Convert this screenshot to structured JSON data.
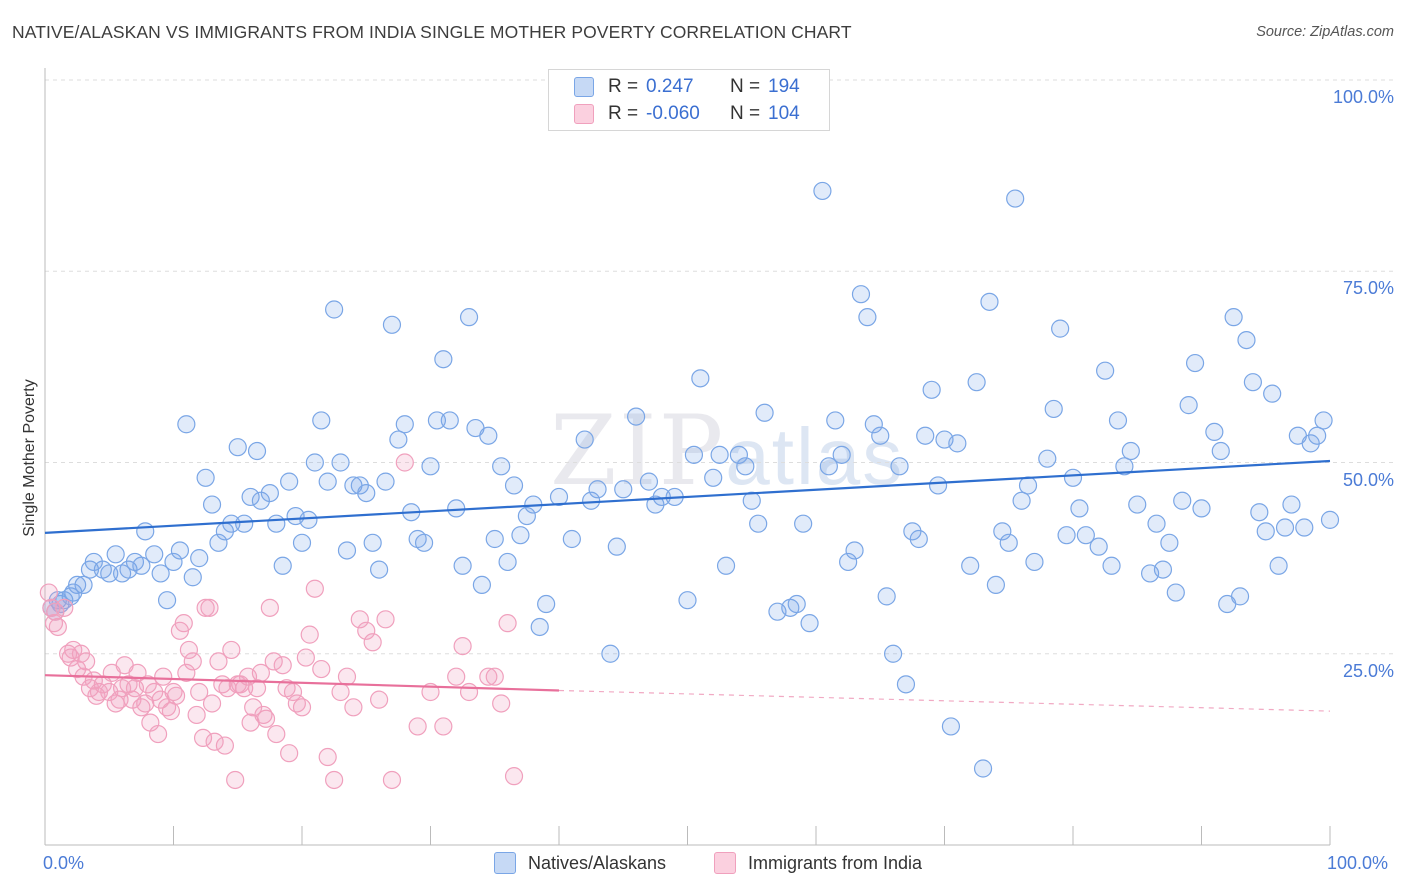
{
  "header": {
    "title": "NATIVE/ALASKAN VS IMMIGRANTS FROM INDIA SINGLE MOTHER POVERTY CORRELATION CHART",
    "source": "Source: ZipAtlas.com"
  },
  "watermark": {
    "zip": "ZIP",
    "atlas": "atlas"
  },
  "legend_top": {
    "rows": [
      {
        "r_label": "R =",
        "r_value": "0.247",
        "n_label": "N =",
        "n_value": "194"
      },
      {
        "r_label": "R =",
        "r_value": "-0.060",
        "n_label": "N =",
        "n_value": "104"
      }
    ]
  },
  "legend_bottom": {
    "series1": "Natives/Alaskans",
    "series2": "Immigrants from India"
  },
  "axes": {
    "y_label": "Single Mother Poverty",
    "y_ticks": [
      "100.0%",
      "75.0%",
      "50.0%",
      "25.0%"
    ],
    "x_min_label": "0.0%",
    "x_max_label": "100.0%"
  },
  "colors": {
    "blue_stroke": "#7aa6e6",
    "blue_fill": "rgba(120,165,230,0.22)",
    "blue_line": "#2f6fcf",
    "pink_stroke": "#f0a0bd",
    "pink_fill": "rgba(240,160,190,0.25)",
    "pink_line": "#e8709b",
    "grid": "#dddddd"
  },
  "chart_data": {
    "type": "scatter",
    "xlim": [
      0,
      100
    ],
    "ylim": [
      0,
      100
    ],
    "series": [
      {
        "name": "Natives/Alaskans",
        "trend": {
          "x": [
            0,
            100
          ],
          "y": [
            40.8,
            50.2
          ]
        },
        "points": [
          [
            0.5,
            31
          ],
          [
            0.8,
            30.5
          ],
          [
            1,
            32
          ],
          [
            1.2,
            31.5
          ],
          [
            1.5,
            32
          ],
          [
            2,
            32.5
          ],
          [
            2.2,
            33
          ],
          [
            2.5,
            34
          ],
          [
            3,
            34
          ],
          [
            3.5,
            36
          ],
          [
            3.8,
            37
          ],
          [
            4.5,
            36
          ],
          [
            5,
            35.5
          ],
          [
            5.5,
            38
          ],
          [
            6,
            35.5
          ],
          [
            6.5,
            36
          ],
          [
            7,
            37
          ],
          [
            7.5,
            36.5
          ],
          [
            7.8,
            41
          ],
          [
            8.5,
            38
          ],
          [
            9,
            35.5
          ],
          [
            9.5,
            32
          ],
          [
            10,
            37
          ],
          [
            10.5,
            38.5
          ],
          [
            11,
            55
          ],
          [
            11.5,
            35
          ],
          [
            12,
            37.5
          ],
          [
            12.5,
            48
          ],
          [
            13,
            44.5
          ],
          [
            13.5,
            39.5
          ],
          [
            14,
            41
          ],
          [
            14.5,
            42
          ],
          [
            15,
            52
          ],
          [
            15.5,
            42
          ],
          [
            16,
            45.5
          ],
          [
            16.5,
            51.5
          ],
          [
            16.8,
            45
          ],
          [
            17.5,
            46
          ],
          [
            18,
            42
          ],
          [
            18.5,
            36.5
          ],
          [
            19,
            47.5
          ],
          [
            19.5,
            43
          ],
          [
            20,
            39.5
          ],
          [
            20.5,
            42.5
          ],
          [
            21,
            50
          ],
          [
            21.5,
            55.5
          ],
          [
            22,
            47.5
          ],
          [
            22.5,
            70
          ],
          [
            23,
            50
          ],
          [
            23.5,
            38.5
          ],
          [
            24,
            47
          ],
          [
            24.5,
            47
          ],
          [
            25,
            46
          ],
          [
            25.5,
            39.5
          ],
          [
            26,
            36
          ],
          [
            26.5,
            47.5
          ],
          [
            27,
            68
          ],
          [
            27.5,
            53
          ],
          [
            28,
            55
          ],
          [
            28.5,
            43.5
          ],
          [
            29,
            40
          ],
          [
            29.5,
            39.5
          ],
          [
            30,
            49.5
          ],
          [
            30.5,
            55.5
          ],
          [
            31,
            63.5
          ],
          [
            31.5,
            55.5
          ],
          [
            32,
            44
          ],
          [
            32.5,
            36.5
          ],
          [
            33,
            69
          ],
          [
            33.5,
            54.5
          ],
          [
            34,
            34
          ],
          [
            34.5,
            53.5
          ],
          [
            35,
            40
          ],
          [
            35.5,
            49.5
          ],
          [
            36,
            37
          ],
          [
            36.5,
            47
          ],
          [
            37,
            40.5
          ],
          [
            37.5,
            43
          ],
          [
            38,
            44.5
          ],
          [
            38.5,
            28.5
          ],
          [
            39,
            31.5
          ],
          [
            40,
            45.5
          ],
          [
            41,
            40
          ],
          [
            42,
            53
          ],
          [
            42.5,
            45
          ],
          [
            43,
            46.5
          ],
          [
            44,
            25
          ],
          [
            44.5,
            39
          ],
          [
            45,
            46.5
          ],
          [
            46,
            56
          ],
          [
            47,
            47.5
          ],
          [
            47.5,
            44.5
          ],
          [
            48,
            45.5
          ],
          [
            49,
            45.5
          ],
          [
            50,
            32
          ],
          [
            50.5,
            51
          ],
          [
            51,
            61
          ],
          [
            52,
            48
          ],
          [
            52.5,
            51
          ],
          [
            53,
            36.5
          ],
          [
            54,
            51
          ],
          [
            54.5,
            49.5
          ],
          [
            55,
            45
          ],
          [
            55.5,
            42
          ],
          [
            56,
            56.5
          ],
          [
            57,
            30.5
          ],
          [
            58,
            31
          ],
          [
            58.5,
            31.5
          ],
          [
            59,
            42
          ],
          [
            59.5,
            29
          ],
          [
            60.5,
            85.5
          ],
          [
            61,
            49.5
          ],
          [
            61.5,
            55.5
          ],
          [
            62,
            51
          ],
          [
            62.5,
            37
          ],
          [
            63,
            38.5
          ],
          [
            63.5,
            72
          ],
          [
            64,
            69
          ],
          [
            64.5,
            55
          ],
          [
            65,
            53.5
          ],
          [
            65.5,
            32.5
          ],
          [
            66,
            25
          ],
          [
            66.5,
            49.5
          ],
          [
            67,
            21
          ],
          [
            67.5,
            41
          ],
          [
            68,
            40
          ],
          [
            68.5,
            53.5
          ],
          [
            69,
            59.5
          ],
          [
            69.5,
            47
          ],
          [
            70,
            53
          ],
          [
            70.5,
            15.5
          ],
          [
            71,
            52.5
          ],
          [
            72,
            36.5
          ],
          [
            72.5,
            60.5
          ],
          [
            73,
            10
          ],
          [
            73.5,
            71
          ],
          [
            74,
            34
          ],
          [
            74.5,
            41
          ],
          [
            75,
            39.5
          ],
          [
            75.5,
            84.5
          ],
          [
            76,
            45
          ],
          [
            76.5,
            47
          ],
          [
            77,
            37
          ],
          [
            78,
            50.5
          ],
          [
            78.5,
            57
          ],
          [
            79,
            67.5
          ],
          [
            79.5,
            40.5
          ],
          [
            80,
            48
          ],
          [
            80.5,
            44
          ],
          [
            81,
            40.5
          ],
          [
            82,
            39
          ],
          [
            82.5,
            62
          ],
          [
            83,
            36.5
          ],
          [
            83.5,
            55.5
          ],
          [
            84,
            49.5
          ],
          [
            84.5,
            51.5
          ],
          [
            85,
            44.5
          ],
          [
            86,
            35.5
          ],
          [
            86.5,
            42
          ],
          [
            87,
            36
          ],
          [
            87.5,
            39.5
          ],
          [
            88,
            33
          ],
          [
            88.5,
            45
          ],
          [
            89,
            57.5
          ],
          [
            89.5,
            63
          ],
          [
            90,
            44
          ],
          [
            91,
            54
          ],
          [
            91.5,
            51.5
          ],
          [
            92,
            31.5
          ],
          [
            92.5,
            69
          ],
          [
            93,
            32.5
          ],
          [
            93.5,
            66
          ],
          [
            94,
            60.5
          ],
          [
            94.5,
            43.5
          ],
          [
            95,
            41
          ],
          [
            95.5,
            59
          ],
          [
            96,
            36.5
          ],
          [
            96.5,
            41.5
          ],
          [
            97,
            44.5
          ],
          [
            97.5,
            53.5
          ],
          [
            98,
            41.5
          ],
          [
            98.5,
            52.5
          ],
          [
            99,
            53.5
          ],
          [
            99.5,
            55.5
          ],
          [
            100,
            42.5
          ]
        ]
      },
      {
        "name": "Immigrants from India",
        "trend": {
          "x": [
            0,
            40
          ],
          "y": [
            22.2,
            20.2
          ]
        },
        "trend_dashed": {
          "x": [
            40,
            100
          ],
          "y": [
            20.2,
            17.5
          ]
        },
        "points": [
          [
            0.3,
            33
          ],
          [
            0.5,
            31
          ],
          [
            0.7,
            29
          ],
          [
            0.8,
            30.5
          ],
          [
            1,
            28.5
          ],
          [
            1.5,
            31
          ],
          [
            1.8,
            25
          ],
          [
            2,
            24.5
          ],
          [
            2.2,
            25.5
          ],
          [
            2.5,
            23
          ],
          [
            2.8,
            25
          ],
          [
            3,
            22
          ],
          [
            3.2,
            24
          ],
          [
            3.5,
            20.5
          ],
          [
            3.8,
            21.5
          ],
          [
            4,
            19.5
          ],
          [
            4.2,
            20
          ],
          [
            4.5,
            21
          ],
          [
            5,
            20
          ],
          [
            5.2,
            22.5
          ],
          [
            5.5,
            18.5
          ],
          [
            5.8,
            19
          ],
          [
            6,
            20.5
          ],
          [
            6.2,
            23.5
          ],
          [
            6.5,
            21
          ],
          [
            6.8,
            19
          ],
          [
            7,
            20.5
          ],
          [
            7.2,
            22.5
          ],
          [
            7.5,
            18
          ],
          [
            7.8,
            18.5
          ],
          [
            8,
            21
          ],
          [
            8.2,
            16
          ],
          [
            8.5,
            20
          ],
          [
            8.8,
            14.5
          ],
          [
            9,
            19
          ],
          [
            9.2,
            22
          ],
          [
            9.5,
            18
          ],
          [
            9.8,
            17.5
          ],
          [
            10,
            20
          ],
          [
            10.2,
            19.5
          ],
          [
            10.5,
            28
          ],
          [
            10.8,
            29
          ],
          [
            11,
            22.5
          ],
          [
            11.2,
            25.5
          ],
          [
            11.5,
            24
          ],
          [
            11.8,
            17
          ],
          [
            12,
            20
          ],
          [
            12.3,
            14
          ],
          [
            12.5,
            31
          ],
          [
            12.8,
            31
          ],
          [
            13,
            18.5
          ],
          [
            13.2,
            13.5
          ],
          [
            13.5,
            24
          ],
          [
            13.8,
            21
          ],
          [
            14,
            13
          ],
          [
            14.2,
            20.5
          ],
          [
            14.5,
            25.5
          ],
          [
            14.8,
            8.5
          ],
          [
            15,
            21
          ],
          [
            15.2,
            21
          ],
          [
            15.5,
            20.5
          ],
          [
            15.8,
            22
          ],
          [
            16,
            16
          ],
          [
            16.2,
            18
          ],
          [
            16.5,
            20.5
          ],
          [
            16.8,
            22.5
          ],
          [
            17,
            17
          ],
          [
            17.2,
            16.5
          ],
          [
            17.5,
            31
          ],
          [
            17.8,
            24
          ],
          [
            18,
            14.5
          ],
          [
            18.5,
            23.5
          ],
          [
            18.8,
            20.5
          ],
          [
            19,
            12
          ],
          [
            19.3,
            20
          ],
          [
            19.6,
            18.5
          ],
          [
            20,
            18
          ],
          [
            20.3,
            24.5
          ],
          [
            20.6,
            27.5
          ],
          [
            21,
            33.5
          ],
          [
            21.5,
            23
          ],
          [
            22,
            11.5
          ],
          [
            22.5,
            8.5
          ],
          [
            23,
            20
          ],
          [
            23.5,
            22
          ],
          [
            24,
            18
          ],
          [
            24.5,
            29.5
          ],
          [
            25,
            28
          ],
          [
            25.5,
            26.5
          ],
          [
            26,
            19
          ],
          [
            26.5,
            29.5
          ],
          [
            27,
            8.5
          ],
          [
            28,
            50
          ],
          [
            29,
            15.5
          ],
          [
            30,
            20
          ],
          [
            31,
            15.5
          ],
          [
            32,
            22
          ],
          [
            32.5,
            26
          ],
          [
            33,
            20
          ],
          [
            34.5,
            22
          ],
          [
            35,
            22
          ],
          [
            35.5,
            18.5
          ],
          [
            36,
            29
          ],
          [
            36.5,
            9
          ]
        ]
      }
    ]
  }
}
